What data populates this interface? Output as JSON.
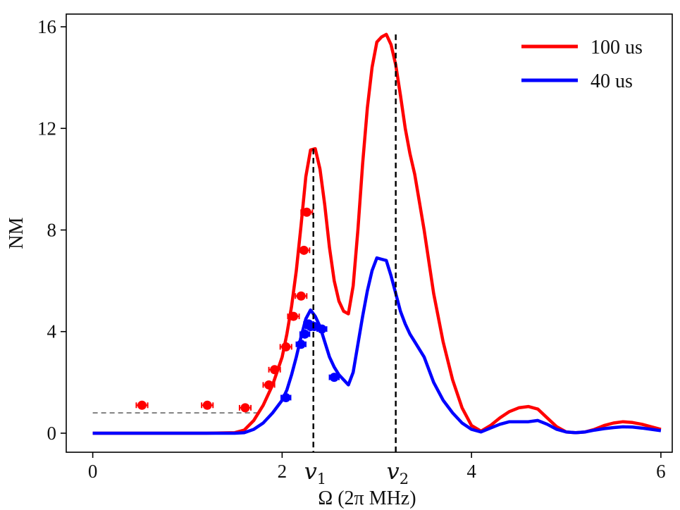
{
  "chart_data": {
    "type": "line",
    "title": "",
    "xlabel": "Ω (2π MHz)",
    "ylabel": "NM",
    "xlim": [
      -0.28,
      6.12
    ],
    "ylim": [
      -0.75,
      16.5
    ],
    "x_ticks": [
      0,
      2,
      4,
      6
    ],
    "y_ticks": [
      0,
      4,
      8,
      12,
      16
    ],
    "grid": false,
    "legend_position": "top-right",
    "colors": {
      "red": "#ff0000",
      "blue": "#0000ff",
      "reference": "#808080",
      "marker": "#000000"
    },
    "series": [
      {
        "name": "100 us",
        "color": "#ff0000",
        "x": [
          0,
          0.4,
          0.8,
          1.2,
          1.5,
          1.6,
          1.7,
          1.8,
          1.9,
          2.0,
          2.05,
          2.1,
          2.15,
          2.2,
          2.25,
          2.3,
          2.35,
          2.4,
          2.45,
          2.5,
          2.55,
          2.6,
          2.65,
          2.7,
          2.75,
          2.8,
          2.85,
          2.9,
          2.95,
          3.0,
          3.05,
          3.1,
          3.15,
          3.2,
          3.25,
          3.3,
          3.35,
          3.4,
          3.5,
          3.6,
          3.7,
          3.8,
          3.9,
          4.0,
          4.1,
          4.2,
          4.3,
          4.4,
          4.5,
          4.6,
          4.7,
          4.8,
          4.9,
          5.0,
          5.1,
          5.2,
          5.3,
          5.4,
          5.5,
          5.6,
          5.7,
          5.8,
          5.9,
          6.0
        ],
        "y": [
          0,
          0,
          0,
          0,
          0.02,
          0.12,
          0.5,
          1.1,
          1.9,
          3.0,
          3.9,
          5.0,
          6.4,
          8.2,
          10.1,
          11.15,
          11.2,
          10.4,
          9.0,
          7.3,
          6.0,
          5.2,
          4.8,
          4.7,
          5.8,
          8.0,
          10.6,
          12.8,
          14.4,
          15.4,
          15.6,
          15.7,
          15.3,
          14.5,
          13.3,
          12.0,
          11.0,
          10.2,
          8.0,
          5.5,
          3.6,
          2.1,
          1.0,
          0.3,
          0.08,
          0.3,
          0.6,
          0.85,
          1.0,
          1.05,
          0.95,
          0.6,
          0.25,
          0.05,
          0.02,
          0.05,
          0.15,
          0.3,
          0.4,
          0.45,
          0.42,
          0.35,
          0.25,
          0.15
        ]
      },
      {
        "name": "40 us",
        "color": "#0000ff",
        "x": [
          0,
          0.4,
          0.8,
          1.2,
          1.5,
          1.6,
          1.7,
          1.8,
          1.9,
          2.0,
          2.05,
          2.1,
          2.15,
          2.2,
          2.25,
          2.3,
          2.35,
          2.4,
          2.45,
          2.5,
          2.55,
          2.6,
          2.65,
          2.7,
          2.75,
          2.8,
          2.85,
          2.9,
          2.95,
          3.0,
          3.05,
          3.1,
          3.15,
          3.2,
          3.25,
          3.3,
          3.35,
          3.4,
          3.5,
          3.6,
          3.7,
          3.8,
          3.9,
          4.0,
          4.1,
          4.2,
          4.3,
          4.4,
          4.5,
          4.6,
          4.7,
          4.8,
          4.9,
          5.0,
          5.1,
          5.2,
          5.3,
          5.4,
          5.5,
          5.6,
          5.7,
          5.8,
          5.9,
          6.0
        ],
        "y": [
          0,
          0,
          0,
          0,
          0,
          0.02,
          0.15,
          0.4,
          0.8,
          1.3,
          1.7,
          2.3,
          3.0,
          3.8,
          4.5,
          4.85,
          4.6,
          4.2,
          3.6,
          3.0,
          2.6,
          2.3,
          2.1,
          1.9,
          2.4,
          3.5,
          4.6,
          5.6,
          6.4,
          6.9,
          6.85,
          6.8,
          6.2,
          5.5,
          4.8,
          4.3,
          3.9,
          3.6,
          3.0,
          2.0,
          1.3,
          0.8,
          0.4,
          0.15,
          0.05,
          0.2,
          0.35,
          0.45,
          0.45,
          0.45,
          0.5,
          0.35,
          0.15,
          0.05,
          0.02,
          0.05,
          0.12,
          0.18,
          0.22,
          0.25,
          0.24,
          0.2,
          0.15,
          0.1
        ]
      }
    ],
    "experimental_points": [
      {
        "name": "100 us data",
        "color": "#ff0000",
        "x": [
          0.52,
          1.21,
          1.61,
          1.86,
          1.92,
          2.04,
          2.12,
          2.2,
          2.23,
          2.26
        ],
        "y": [
          1.1,
          1.1,
          1.0,
          1.9,
          2.5,
          3.4,
          4.6,
          5.4,
          7.2,
          8.7
        ],
        "xerr": 0.06
      },
      {
        "name": "40 us data",
        "color": "#0000ff",
        "x": [
          2.04,
          2.2,
          2.24,
          2.28,
          2.3,
          2.34,
          2.42,
          2.55
        ],
        "y": [
          1.4,
          3.5,
          3.9,
          4.3,
          4.2,
          4.2,
          4.1,
          2.2
        ],
        "xerr": 0.05
      }
    ],
    "reference_line": {
      "y": 0.8,
      "x_start": 0,
      "x_end": 1.75
    },
    "markers": [
      {
        "symbol": "v",
        "subscript": "1",
        "x": 2.33
      },
      {
        "symbol": "v",
        "subscript": "2",
        "x": 3.2
      }
    ],
    "legend": [
      "100 us",
      "40 us"
    ]
  }
}
